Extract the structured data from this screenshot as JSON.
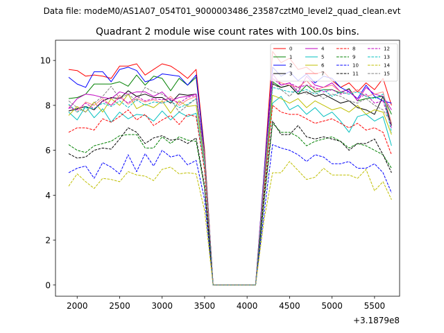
{
  "suptitle": "Data file: modeM0/AS1A07_054T01_9000003486_23587cztM0_level2_quad_clean.evt",
  "chart_data": {
    "type": "line",
    "title": "Quadrant 2 module wise count rates with 100.0s bins.",
    "xlabel": "",
    "ylabel": "",
    "x_offset_label": "+3.1879e8",
    "xlim": [
      1745,
      5795
    ],
    "ylim": [
      -0.5,
      10.9
    ],
    "xticks": [
      2000,
      2500,
      3000,
      3500,
      4000,
      4500,
      5000,
      5500
    ],
    "yticks": [
      0,
      2,
      4,
      6,
      8,
      10
    ],
    "x": [
      1900,
      2000,
      2100,
      2200,
      2300,
      2400,
      2500,
      2600,
      2700,
      2800,
      2900,
      3000,
      3100,
      3200,
      3300,
      3400,
      3500,
      3600,
      3700,
      3800,
      3900,
      4000,
      4100,
      4200,
      4300,
      4400,
      4500,
      4600,
      4700,
      4800,
      4900,
      5000,
      5100,
      5200,
      5300,
      5400,
      5500,
      5600,
      5700
    ],
    "legend": {
      "location": "top-right",
      "ncol": 4
    },
    "series": [
      {
        "name": "0",
        "color": "#ff0000",
        "dash": "solid",
        "values": [
          9.6,
          9.55,
          9.3,
          9.35,
          9.3,
          9.2,
          9.75,
          9.75,
          9.85,
          9.35,
          9.6,
          9.85,
          9.75,
          9.5,
          9.2,
          9.6,
          6.0,
          0,
          0,
          0,
          0,
          0,
          0,
          5.0,
          10.4,
          9.9,
          10.1,
          9.6,
          9.7,
          9.4,
          9.5,
          9.1,
          8.8,
          9.0,
          8.6,
          9.0,
          8.7,
          9.2,
          8.0
        ]
      },
      {
        "name": "1",
        "color": "#008000",
        "dash": "solid",
        "values": [
          8.3,
          8.35,
          8.5,
          8.95,
          8.95,
          8.95,
          9.05,
          8.85,
          9.35,
          8.9,
          9.3,
          9.2,
          8.65,
          9.2,
          8.9,
          9.25,
          5.9,
          0,
          0,
          0,
          0,
          0,
          0,
          4.7,
          9.05,
          8.8,
          8.9,
          8.5,
          8.9,
          8.6,
          8.7,
          8.7,
          8.55,
          8.75,
          8.2,
          8.3,
          8.35,
          8.4,
          7.6
        ]
      },
      {
        "name": "2",
        "color": "#0000ff",
        "dash": "solid",
        "values": [
          9.25,
          8.95,
          8.8,
          9.5,
          9.5,
          9.05,
          9.6,
          9.7,
          9.55,
          9.05,
          9.15,
          9.4,
          9.35,
          9.3,
          8.9,
          9.35,
          5.8,
          0,
          0,
          0,
          0,
          0,
          0,
          5.0,
          9.7,
          9.3,
          9.5,
          9.1,
          9.4,
          9.0,
          9.3,
          9.2,
          8.8,
          8.6,
          8.3,
          8.9,
          8.4,
          8.2,
          8.1
        ]
      },
      {
        "name": "3",
        "color": "#000000",
        "dash": "solid",
        "values": [
          7.75,
          7.85,
          7.95,
          7.8,
          8.2,
          8.35,
          8.3,
          8.65,
          8.4,
          8.5,
          8.35,
          8.35,
          8.1,
          8.5,
          8.45,
          8.5,
          5.8,
          0,
          0,
          0,
          0,
          0,
          0,
          4.6,
          8.95,
          8.8,
          8.9,
          8.5,
          8.6,
          8.4,
          8.5,
          8.3,
          8.1,
          8.2,
          7.9,
          7.8,
          7.6,
          8.4,
          7.1
        ]
      },
      {
        "name": "4",
        "color": "#bf00bf",
        "dash": "solid",
        "values": [
          7.85,
          8.3,
          8.5,
          8.45,
          8.35,
          8.3,
          8.6,
          8.5,
          8.6,
          8.6,
          8.4,
          8.6,
          8.2,
          8.35,
          8.4,
          8.5,
          5.8,
          0,
          0,
          0,
          0,
          0,
          0,
          4.6,
          9.4,
          8.9,
          9.0,
          8.6,
          9.3,
          8.9,
          8.8,
          9.0,
          8.6,
          8.7,
          8.2,
          8.8,
          8.5,
          8.4,
          7.8
        ]
      },
      {
        "name": "5",
        "color": "#00bfbf",
        "dash": "solid",
        "values": [
          7.7,
          7.35,
          7.95,
          7.45,
          7.85,
          7.25,
          7.7,
          7.4,
          7.6,
          7.55,
          7.3,
          7.75,
          7.35,
          7.7,
          7.5,
          7.65,
          5.3,
          0,
          0,
          0,
          0,
          0,
          0,
          4.3,
          8.1,
          8.4,
          7.8,
          8.0,
          7.6,
          7.9,
          7.5,
          7.7,
          7.3,
          6.8,
          7.5,
          7.6,
          7.3,
          7.5,
          6.2
        ]
      },
      {
        "name": "6",
        "color": "#bfbf00",
        "dash": "solid",
        "values": [
          7.55,
          7.95,
          7.7,
          8.15,
          7.7,
          8.3,
          8.0,
          8.5,
          7.85,
          8.05,
          7.9,
          8.2,
          7.65,
          8.2,
          7.95,
          8.0,
          5.5,
          0,
          0,
          0,
          0,
          0,
          0,
          4.4,
          8.45,
          8.3,
          8.1,
          8.3,
          7.9,
          8.2,
          8.0,
          7.8,
          7.9,
          7.7,
          8.0,
          7.6,
          7.8,
          7.7,
          6.7
        ]
      },
      {
        "name": "7",
        "color": "#ff8080",
        "dash": "solid",
        "values": [
          8.0,
          7.7,
          8.15,
          8.0,
          8.3,
          8.0,
          8.45,
          8.05,
          8.3,
          8.15,
          8.25,
          8.1,
          8.4,
          8.0,
          8.25,
          8.4,
          5.8,
          0,
          0,
          0,
          0,
          0,
          0,
          4.8,
          9.2,
          9.0,
          8.9,
          8.8,
          9.1,
          8.7,
          8.8,
          8.9,
          8.6,
          8.5,
          8.7,
          8.4,
          8.5,
          8.6,
          7.2
        ]
      },
      {
        "name": "8",
        "color": "#ff0000",
        "dash": "dashed",
        "values": [
          6.8,
          7.0,
          7.0,
          6.9,
          7.4,
          7.25,
          7.5,
          7.8,
          7.35,
          7.6,
          7.1,
          7.35,
          7.55,
          7.15,
          7.6,
          7.5,
          5.1,
          0,
          0,
          0,
          0,
          0,
          0,
          4.2,
          8.0,
          7.7,
          7.6,
          7.6,
          7.4,
          7.2,
          7.3,
          7.4,
          7.2,
          7.0,
          7.2,
          6.9,
          7.0,
          6.8,
          5.8
        ]
      },
      {
        "name": "9",
        "color": "#008000",
        "dash": "dashed",
        "values": [
          6.25,
          6.0,
          5.9,
          6.2,
          6.3,
          6.4,
          6.65,
          6.7,
          6.7,
          6.1,
          6.1,
          6.6,
          6.3,
          6.6,
          6.45,
          6.4,
          4.3,
          0,
          0,
          0,
          0,
          0,
          0,
          3.7,
          7.2,
          6.8,
          6.8,
          6.6,
          6.2,
          6.4,
          6.5,
          6.6,
          6.4,
          6.1,
          6.3,
          6.2,
          6.0,
          5.8,
          5.2
        ]
      },
      {
        "name": "10",
        "color": "#0000ff",
        "dash": "dashed",
        "values": [
          5.0,
          5.2,
          5.3,
          4.75,
          5.45,
          5.25,
          4.95,
          5.8,
          5.05,
          5.85,
          5.3,
          6.0,
          5.7,
          5.8,
          5.35,
          5.55,
          3.8,
          0,
          0,
          0,
          0,
          0,
          0,
          3.2,
          6.25,
          6.1,
          6.0,
          5.8,
          5.5,
          5.8,
          5.7,
          5.4,
          5.4,
          5.5,
          5.2,
          5.2,
          5.4,
          5.0,
          4.1
        ]
      },
      {
        "name": "11",
        "color": "#000000",
        "dash": "dashed",
        "values": [
          5.85,
          5.65,
          5.7,
          6.0,
          6.1,
          6.05,
          6.5,
          7.0,
          6.8,
          6.3,
          6.55,
          6.65,
          6.45,
          6.5,
          6.3,
          6.55,
          4.4,
          0,
          0,
          0,
          0,
          0,
          0,
          3.9,
          7.3,
          6.7,
          6.7,
          7.1,
          6.6,
          6.5,
          6.6,
          6.5,
          6.4,
          6.0,
          6.3,
          6.3,
          6.5,
          5.8,
          5.0
        ]
      },
      {
        "name": "12",
        "color": "#bf00bf",
        "dash": "dashed",
        "values": [
          7.9,
          7.8,
          8.1,
          7.85,
          8.2,
          8.0,
          8.35,
          8.1,
          8.4,
          8.2,
          8.3,
          8.25,
          8.3,
          8.1,
          8.35,
          8.45,
          5.7,
          0,
          0,
          0,
          0,
          0,
          0,
          4.7,
          9.2,
          8.9,
          9.0,
          8.8,
          8.9,
          8.8,
          8.6,
          8.7,
          8.5,
          8.6,
          8.3,
          8.5,
          8.1,
          8.2,
          7.0
        ]
      },
      {
        "name": "13",
        "color": "#00bfbf",
        "dash": "dashed",
        "values": [
          8.05,
          7.7,
          7.9,
          7.85,
          8.1,
          7.95,
          8.2,
          7.9,
          8.25,
          8.0,
          8.15,
          8.1,
          8.2,
          7.9,
          8.05,
          8.3,
          5.6,
          0,
          0,
          0,
          0,
          0,
          0,
          4.5,
          8.8,
          8.7,
          8.6,
          8.6,
          8.7,
          8.5,
          8.7,
          8.4,
          8.6,
          8.5,
          8.6,
          8.4,
          8.3,
          8.5,
          6.8
        ]
      },
      {
        "name": "14",
        "color": "#bfbf00",
        "dash": "dashed",
        "values": [
          4.4,
          4.95,
          4.6,
          4.3,
          4.75,
          4.7,
          4.6,
          5.05,
          4.9,
          4.85,
          4.65,
          5.15,
          5.25,
          4.95,
          5.0,
          4.95,
          3.3,
          0,
          0,
          0,
          0,
          0,
          0,
          2.9,
          5.0,
          5.0,
          5.5,
          5.1,
          4.7,
          4.8,
          5.2,
          4.9,
          4.9,
          4.9,
          4.75,
          5.15,
          4.2,
          4.6,
          3.8
        ]
      },
      {
        "name": "15",
        "color": "#808080",
        "dash": "dashed",
        "values": [
          8.2,
          7.9,
          7.7,
          8.1,
          8.4,
          8.85,
          8.3,
          8.5,
          8.2,
          8.8,
          8.6,
          8.5,
          8.25,
          7.7,
          8.0,
          8.3,
          5.6,
          0,
          0,
          0,
          0,
          0,
          0,
          4.6,
          9.0,
          8.7,
          8.4,
          8.8,
          8.5,
          8.6,
          8.3,
          8.5,
          8.4,
          8.2,
          8.1,
          8.3,
          8.0,
          7.8,
          7.2
        ]
      }
    ]
  }
}
